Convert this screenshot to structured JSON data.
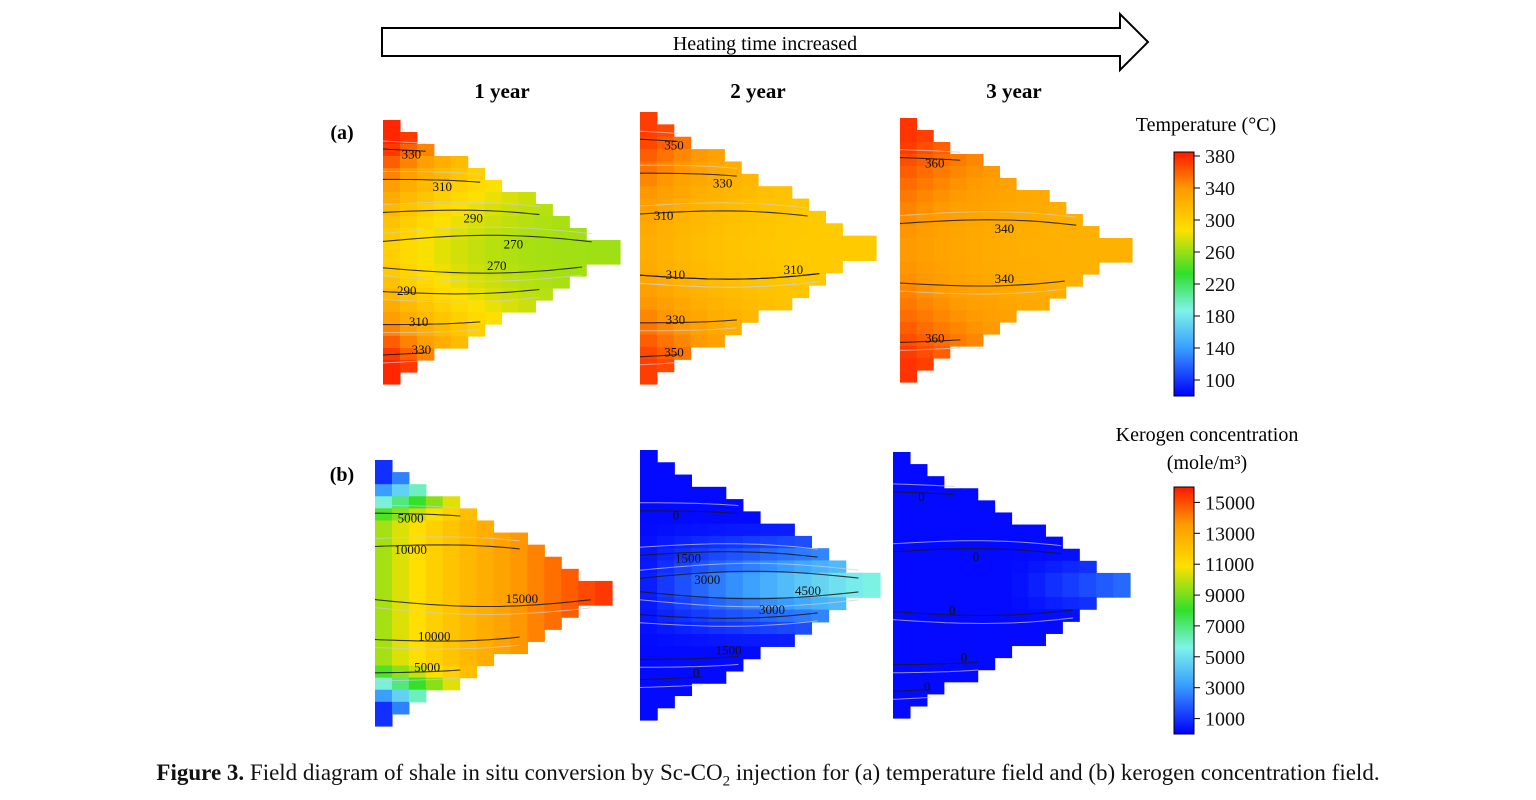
{
  "header": {
    "arrow_label": "Heating time increased",
    "columns": [
      "1 year",
      "2 year",
      "3 year"
    ]
  },
  "panels": [
    {
      "label": "(a)",
      "colorbar": {
        "title_line1": "Temperature (°C)",
        "title_line2": "",
        "ticks": [
          "380",
          "340",
          "300",
          "260",
          "220",
          "180",
          "140",
          "100"
        ],
        "range": [
          80,
          385
        ]
      },
      "maps": [
        {
          "year": "1 year",
          "center_value": 262,
          "edge_value": 380,
          "contour_labels": [
            "330",
            "310",
            "290",
            "270",
            "290",
            "310",
            "330",
            "270"
          ]
        },
        {
          "year": "2 year",
          "center_value": 303,
          "edge_value": 372,
          "contour_labels": [
            "350",
            "330",
            "310",
            "310",
            "310",
            "330",
            "350"
          ]
        },
        {
          "year": "3 year",
          "center_value": 322,
          "edge_value": 375,
          "contour_labels": [
            "360",
            "340",
            "340",
            "360"
          ]
        }
      ]
    },
    {
      "label": "(b)",
      "colorbar": {
        "title_line1": "Kerogen concentration",
        "title_line2": "(mole/m³)",
        "ticks": [
          "15000",
          "13000",
          "11000",
          "9000",
          "7000",
          "5000",
          "3000",
          "1000"
        ],
        "range": [
          0,
          16000
        ]
      },
      "maps": [
        {
          "year": "1 year",
          "center_value": 15600,
          "edge_value": 200,
          "contour_labels": [
            "5000",
            "10000",
            "15000",
            "10000",
            "5000"
          ]
        },
        {
          "year": "2 year",
          "center_value": 6500,
          "edge_value": 200,
          "contour_labels": [
            "0",
            "1500",
            "3000",
            "4500",
            "3000",
            "1500",
            "0"
          ]
        },
        {
          "year": "3 year",
          "center_value": 400,
          "edge_value": 200,
          "contour_labels": [
            "0",
            "0",
            "0",
            "0",
            "0"
          ]
        }
      ]
    }
  ],
  "caption": {
    "label": "Figure 3.",
    "text_pre": "Field diagram of shale in situ conversion by Sc-CO",
    "subscript": "2",
    "text_post": " injection for (a) temperature field and (b) kerogen concentration field."
  },
  "colors": {
    "hot": "#ff2a00",
    "warm": "#ffd600",
    "mid": "#22e22b",
    "cool": "#7af0e8",
    "cold": "#0a22ff"
  }
}
